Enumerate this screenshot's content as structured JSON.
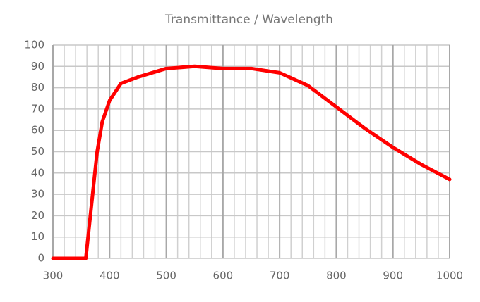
{
  "chart_data": {
    "type": "line",
    "title": "Transmittance / Wavelength",
    "x": [
      300,
      350,
      358,
      370,
      378,
      387,
      400,
      420,
      450,
      500,
      550,
      600,
      650,
      700,
      750,
      800,
      850,
      900,
      950,
      1000
    ],
    "series": [
      {
        "name": "Transmittance",
        "color": "#ff0000",
        "values": [
          0,
          0,
          0,
          30,
          50,
          64,
          74,
          82,
          85,
          89,
          90,
          89,
          89,
          87,
          81,
          71,
          61,
          52,
          44,
          37
        ]
      }
    ],
    "xlim": [
      300,
      1000
    ],
    "xticks": [
      300,
      400,
      500,
      600,
      700,
      800,
      900,
      1000
    ],
    "ylim": [
      0,
      100
    ],
    "yticks": [
      0,
      10,
      20,
      30,
      40,
      50,
      60,
      70,
      80,
      90,
      100
    ],
    "grid": true
  }
}
